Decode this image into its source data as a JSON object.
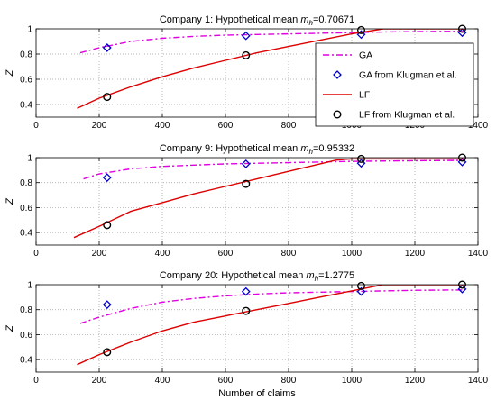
{
  "chart_data": [
    {
      "type": "line",
      "title_prefix": "Company 1: Hypothetical mean ",
      "title_var": "m",
      "title_sub": "h",
      "title_value": "=0.70671",
      "xlabel": "",
      "ylabel": "Z",
      "xlim": [
        0,
        1400
      ],
      "ylim": [
        0.3,
        1.0
      ],
      "xticks": [
        0,
        200,
        400,
        600,
        800,
        1000,
        1200,
        1400
      ],
      "yticks": [
        0.4,
        0.6,
        0.8,
        1
      ],
      "grid": true,
      "legend_position": "inside-right",
      "series": [
        {
          "name": "GA",
          "kind": "dashdot",
          "color": "#e000e0",
          "x": [
            140,
            200,
            300,
            400,
            500,
            600,
            700,
            800,
            900,
            1000,
            1100,
            1200,
            1300,
            1360
          ],
          "y": [
            0.81,
            0.85,
            0.9,
            0.925,
            0.94,
            0.95,
            0.955,
            0.96,
            0.965,
            0.97,
            0.975,
            0.978,
            0.98,
            0.98
          ]
        },
        {
          "name": "GA from Klugman et al.",
          "kind": "diamond",
          "color": "#0000cc",
          "x": [
            225,
            665,
            1030,
            1350
          ],
          "y": [
            0.85,
            0.945,
            0.955,
            0.97
          ]
        },
        {
          "name": "LF",
          "kind": "solid",
          "color": "#dd0000",
          "x": [
            130,
            200,
            300,
            400,
            500,
            600,
            700,
            800,
            900,
            1000,
            1100,
            1200,
            1300,
            1360
          ],
          "y": [
            0.37,
            0.45,
            0.54,
            0.62,
            0.69,
            0.75,
            0.81,
            0.86,
            0.91,
            0.96,
            1.0,
            1.0,
            1.0,
            1.0
          ]
        },
        {
          "name": "LF from Klugman et al.",
          "kind": "circle",
          "color": "#000000",
          "x": [
            225,
            665,
            1030,
            1350
          ],
          "y": [
            0.46,
            0.79,
            0.99,
            1.0
          ]
        }
      ]
    },
    {
      "type": "line",
      "title_prefix": "Company 9: Hypothetical mean ",
      "title_var": "m",
      "title_sub": "h",
      "title_value": "=0.95332",
      "xlabel": "",
      "ylabel": "Z",
      "xlim": [
        0,
        1400
      ],
      "ylim": [
        0.3,
        1.0
      ],
      "xticks": [
        0,
        200,
        400,
        600,
        800,
        1000,
        1200,
        1400
      ],
      "yticks": [
        0.4,
        0.6,
        0.8,
        1
      ],
      "grid": true,
      "series": [
        {
          "kind": "dashdot",
          "color": "#e000e0",
          "x": [
            150,
            200,
            300,
            400,
            500,
            600,
            700,
            800,
            900,
            1000,
            1100,
            1200,
            1300,
            1360
          ],
          "y": [
            0.83,
            0.87,
            0.91,
            0.93,
            0.94,
            0.95,
            0.955,
            0.96,
            0.965,
            0.97,
            0.973,
            0.975,
            0.977,
            0.978
          ]
        },
        {
          "kind": "diamond",
          "color": "#0000cc",
          "x": [
            225,
            665,
            1030,
            1350
          ],
          "y": [
            0.84,
            0.95,
            0.955,
            0.965
          ]
        },
        {
          "kind": "solid",
          "color": "#dd0000",
          "x": [
            120,
            200,
            300,
            400,
            500,
            600,
            700,
            800,
            900,
            950,
            1000,
            1100,
            1200,
            1300,
            1360
          ],
          "y": [
            0.36,
            0.45,
            0.57,
            0.64,
            0.71,
            0.77,
            0.83,
            0.89,
            0.95,
            0.98,
            0.99,
            0.99,
            0.99,
            0.99,
            0.99
          ]
        },
        {
          "kind": "circle",
          "color": "#000000",
          "x": [
            225,
            665,
            1030,
            1350
          ],
          "y": [
            0.46,
            0.79,
            0.99,
            1.0
          ]
        }
      ]
    },
    {
      "type": "line",
      "title_prefix": "Company 20: Hypothetical mean ",
      "title_var": "m",
      "title_sub": "h",
      "title_value": "=1.2775",
      "xlabel": "Number of claims",
      "ylabel": "Z",
      "xlim": [
        0,
        1400
      ],
      "ylim": [
        0.3,
        1.0
      ],
      "xticks": [
        0,
        200,
        400,
        600,
        800,
        1000,
        1200,
        1400
      ],
      "yticks": [
        0.4,
        0.6,
        0.8,
        1
      ],
      "grid": true,
      "series": [
        {
          "kind": "dashdot",
          "color": "#e000e0",
          "x": [
            140,
            200,
            300,
            400,
            500,
            600,
            700,
            800,
            900,
            1000,
            1100,
            1200,
            1300,
            1360
          ],
          "y": [
            0.69,
            0.74,
            0.81,
            0.86,
            0.89,
            0.91,
            0.925,
            0.935,
            0.94,
            0.945,
            0.95,
            0.955,
            0.957,
            0.958
          ]
        },
        {
          "kind": "diamond",
          "color": "#0000cc",
          "x": [
            225,
            665,
            1030,
            1350
          ],
          "y": [
            0.84,
            0.945,
            0.945,
            0.965
          ]
        },
        {
          "kind": "solid",
          "color": "#dd0000",
          "x": [
            130,
            200,
            300,
            400,
            500,
            600,
            700,
            800,
            900,
            1000,
            1100,
            1200,
            1300,
            1360
          ],
          "y": [
            0.36,
            0.44,
            0.54,
            0.63,
            0.7,
            0.75,
            0.8,
            0.85,
            0.9,
            0.95,
            1.0,
            1.0,
            1.0,
            1.0
          ]
        },
        {
          "kind": "circle",
          "color": "#000000",
          "x": [
            225,
            665,
            1030,
            1350
          ],
          "y": [
            0.46,
            0.79,
            0.99,
            1.0
          ]
        }
      ]
    }
  ]
}
